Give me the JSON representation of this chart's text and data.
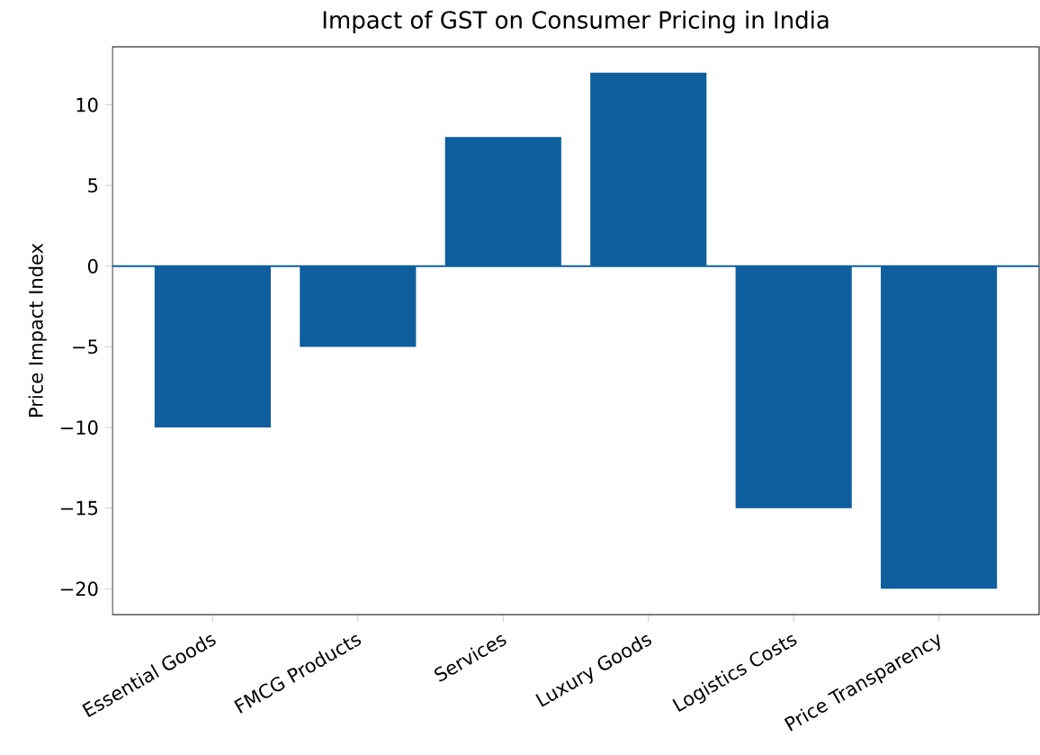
{
  "chart_data": {
    "type": "bar",
    "title": "Impact of GST on Consumer Pricing in India",
    "ylabel": "Price Impact Index",
    "categories": [
      "Essential Goods",
      "FMCG Products",
      "Services",
      "Luxury Goods",
      "Logistics Costs",
      "Price Transparency"
    ],
    "values": [
      -10,
      -5,
      8,
      12,
      -15,
      -20
    ],
    "color": "#0f5f9f",
    "ylim": [
      -21.6,
      13.6
    ],
    "yticks": [
      {
        "value": -20,
        "label": "−20"
      },
      {
        "value": -15,
        "label": "−15"
      },
      {
        "value": -10,
        "label": "−10"
      },
      {
        "value": -5,
        "label": "−5"
      },
      0,
      5,
      10
    ],
    "ref_lines": [
      {
        "axis": "y",
        "value": 0,
        "color": "#0f5f9f"
      }
    ],
    "grid": false
  }
}
